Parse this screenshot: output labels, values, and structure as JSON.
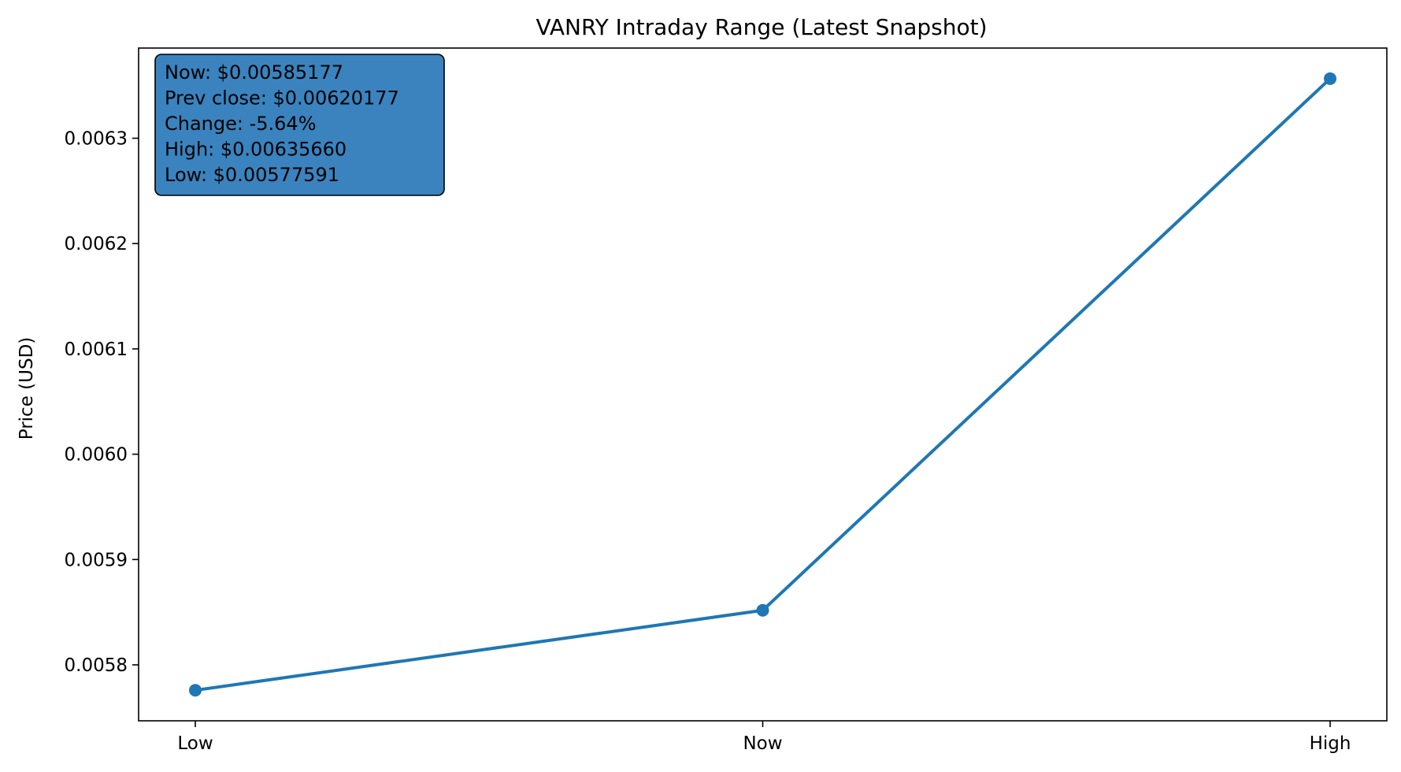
{
  "chart_data": {
    "type": "line",
    "title": "VANRY Intraday Range (Latest Snapshot)",
    "xlabel": "",
    "ylabel": "Price (USD)",
    "categories": [
      "Low",
      "Now",
      "High"
    ],
    "values": [
      0.00577591,
      0.00585177,
      0.0063566
    ],
    "y_ticks": [
      0.0058,
      0.0059,
      0.006,
      0.0061,
      0.0062,
      0.0063
    ],
    "y_tick_labels": [
      "0.0058",
      "0.0059",
      "0.0060",
      "0.0061",
      "0.0062",
      "0.0063"
    ],
    "ylim": [
      0.00574688,
      0.00638564
    ],
    "grid": false,
    "line_color": "#1f77b4",
    "annotation_box_color": "#3a83be",
    "annotation": {
      "lines": [
        "Now: $0.00585177",
        "Prev close: $0.00620177",
        "Change: -5.64%",
        "High: $0.00635660",
        "Low: $0.00577591"
      ]
    }
  }
}
